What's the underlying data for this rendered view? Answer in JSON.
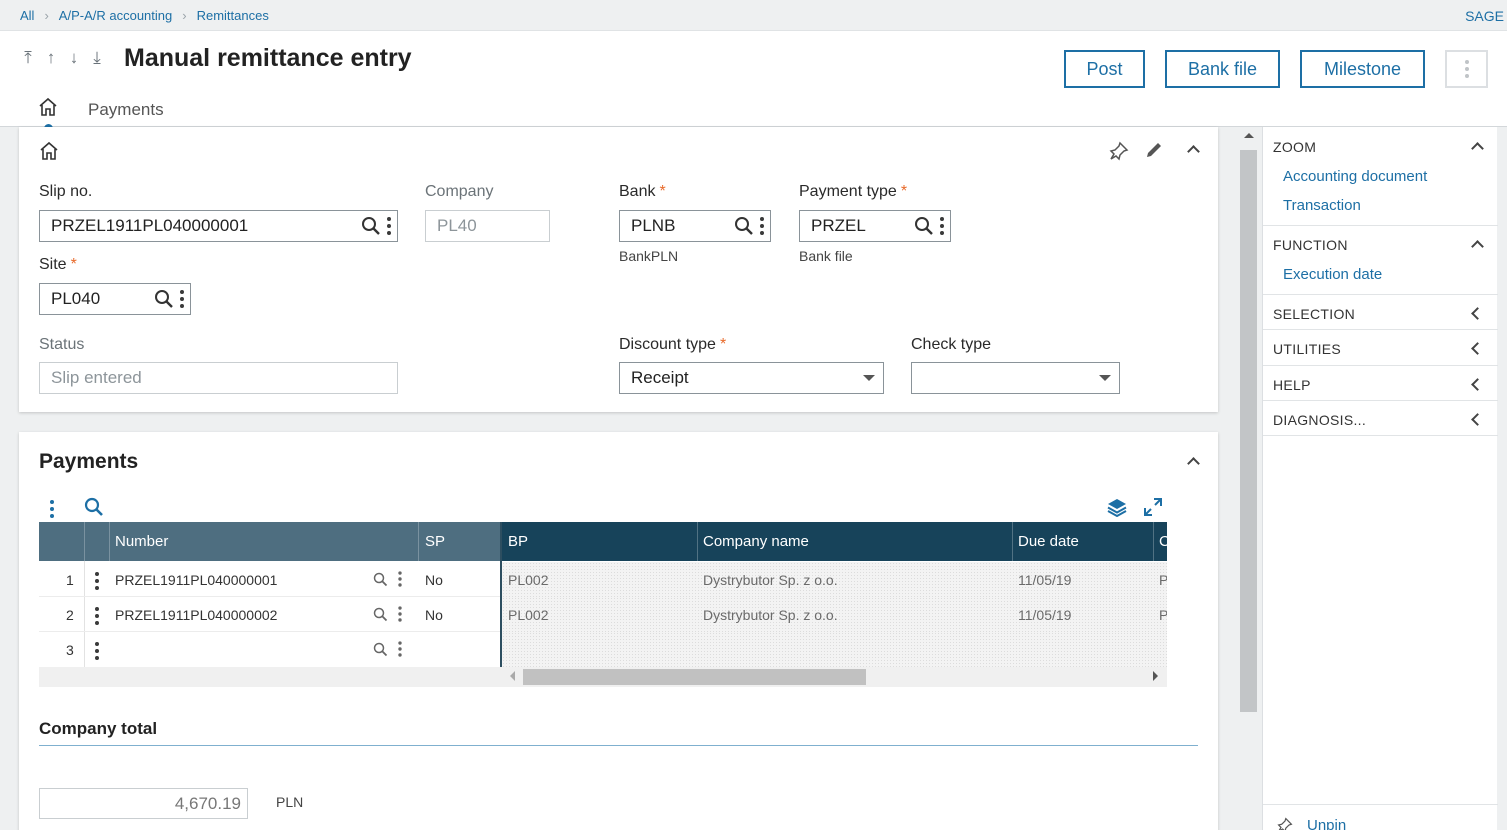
{
  "breadcrumb": {
    "items": [
      "All",
      "A/P-A/R accounting",
      "Remittances"
    ],
    "brand": "SAGE"
  },
  "header": {
    "title": "Manual remittance entry",
    "buttons": {
      "post": "Post",
      "bank_file": "Bank file",
      "milestone": "Milestone"
    },
    "tab_label": "Payments"
  },
  "form": {
    "slip_no": {
      "label": "Slip no.",
      "value": "PRZEL1911PL040000001"
    },
    "company": {
      "label": "Company",
      "value": "PL40"
    },
    "bank": {
      "label": "Bank",
      "required": "*",
      "value": "PLNB",
      "description": "BankPLN"
    },
    "payment_type": {
      "label": "Payment type",
      "required": "*",
      "value": "PRZEL",
      "description": "Bank file"
    },
    "site": {
      "label": "Site",
      "required": "*",
      "value": "PL040"
    },
    "status": {
      "label": "Status",
      "value": "Slip entered"
    },
    "discount_type": {
      "label": "Discount type",
      "required": "*",
      "value": "Receipt"
    },
    "check_type": {
      "label": "Check type",
      "value": ""
    }
  },
  "payments": {
    "title": "Payments",
    "columns": {
      "number": "Number",
      "sp": "SP",
      "bp": "BP",
      "company_name": "Company name",
      "due_date": "Due date",
      "next": "C"
    },
    "rows": [
      {
        "index": "1",
        "number": "PRZEL1911PL040000001",
        "sp": "No",
        "bp": "PL002",
        "company_name": "Dystrybutor Sp. z o.o.",
        "due_date": "11/05/19",
        "next": "P"
      },
      {
        "index": "2",
        "number": "PRZEL1911PL040000002",
        "sp": "No",
        "bp": "PL002",
        "company_name": "Dystrybutor Sp. z o.o.",
        "due_date": "11/05/19",
        "next": "P"
      },
      {
        "index": "3",
        "number": "",
        "sp": "",
        "bp": "",
        "company_name": "",
        "due_date": "",
        "next": ""
      }
    ]
  },
  "company_total": {
    "title": "Company total",
    "value": "4,670.19",
    "currency": "PLN"
  },
  "sidebar": {
    "zoom": {
      "title": "ZOOM",
      "links": [
        "Accounting document",
        "Transaction"
      ]
    },
    "function": {
      "title": "FUNCTION",
      "links": [
        "Execution date"
      ]
    },
    "selection": "SELECTION",
    "utilities": "UTILITIES",
    "help": "HELP",
    "diagnosis": "DIAGNOSIS...",
    "unpin": "Unpin"
  },
  "colors": {
    "accent": "#1d6fa5",
    "required": "#e86a2a",
    "grid_header_left": "#4e6e80",
    "grid_header_right": "#17435a"
  }
}
